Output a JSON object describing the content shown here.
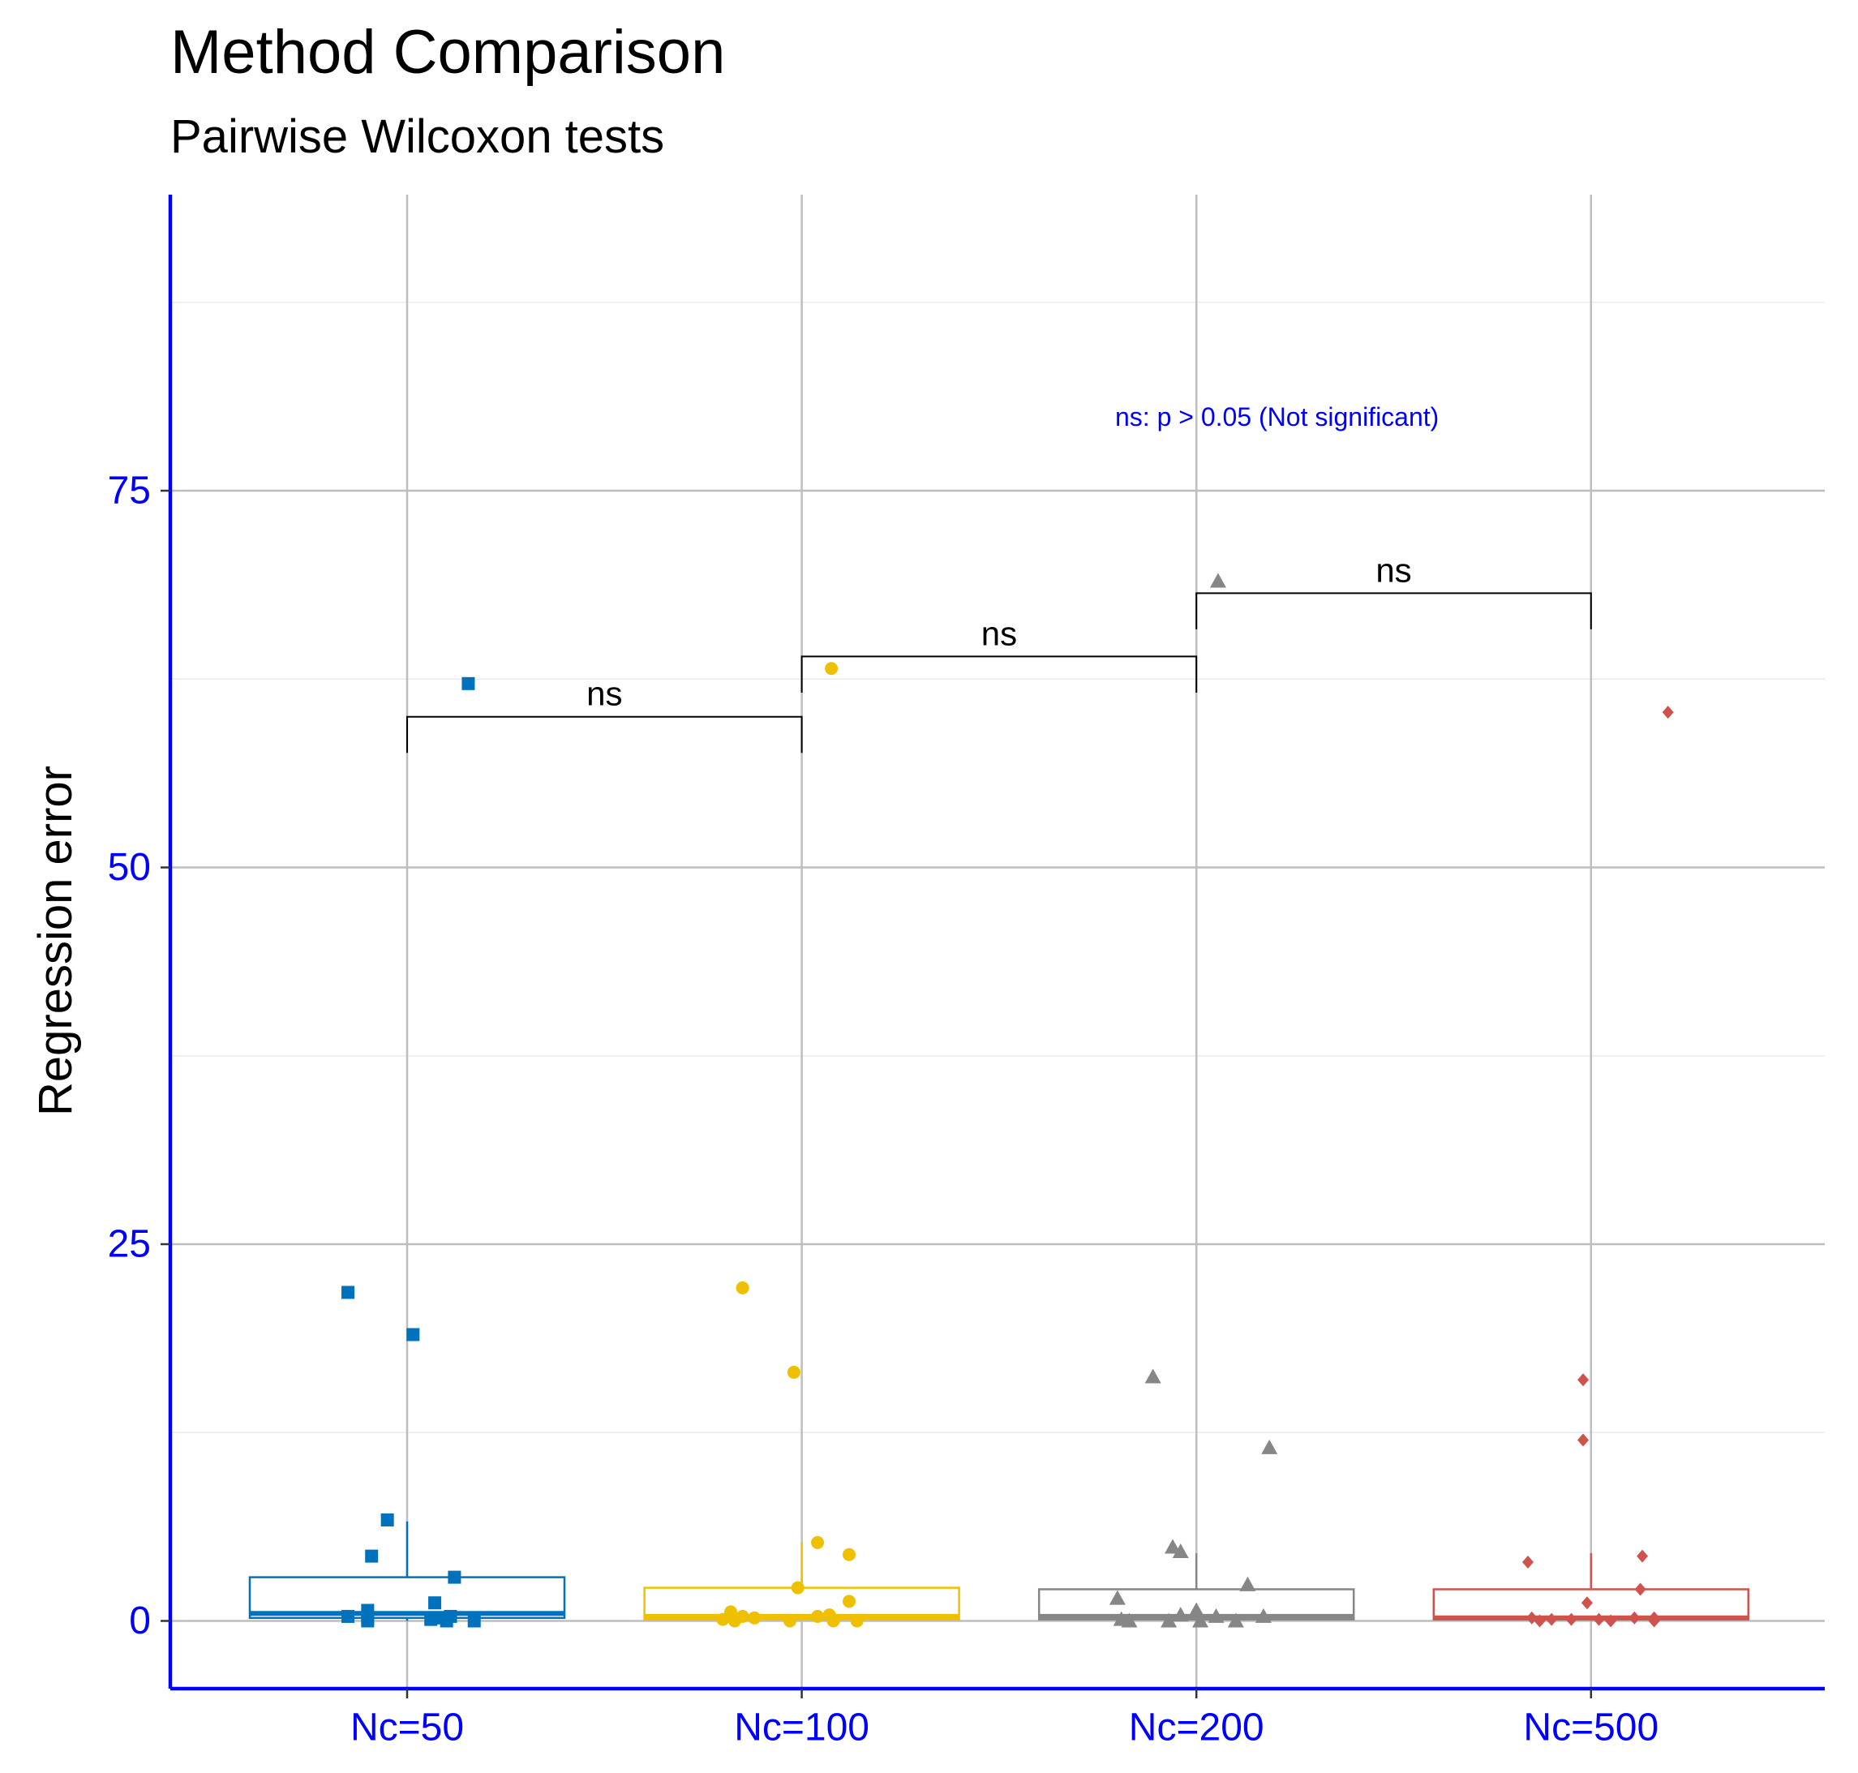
{
  "chart_data": {
    "type": "box",
    "title": "Method Comparison",
    "subtitle": "Pairwise Wilcoxon tests",
    "xlabel": "",
    "ylabel": "Regression error",
    "ylim": [
      -4.5,
      94
    ],
    "yticks": [
      0,
      25,
      50,
      75
    ],
    "ytick_labels": [
      "0",
      "25",
      "50",
      "75"
    ],
    "minor_gridlines": [
      12.5,
      37.5,
      62.5,
      87.5
    ],
    "grid": true,
    "legend": "none",
    "categories": [
      "Nc=50",
      "Nc=100",
      "Nc=200",
      "Nc=500"
    ],
    "series": [
      {
        "name": "Nc=50",
        "color": "#0072bd",
        "marker": "square",
        "box": {
          "q1": 0.2,
          "median": 0.5,
          "q3": 2.9,
          "whisker_low": 0,
          "whisker_high": 6.6
        },
        "points": [
          {
            "x": -0.15,
            "y": 21.8
          },
          {
            "x": 0.015,
            "y": 19.0
          },
          {
            "x": 0.155,
            "y": 62.2
          },
          {
            "x": -0.05,
            "y": 6.7
          },
          {
            "x": -0.09,
            "y": 4.3
          },
          {
            "x": 0.12,
            "y": 2.9
          },
          {
            "x": 0.07,
            "y": 1.2
          },
          {
            "x": -0.1,
            "y": 0.7
          },
          {
            "x": -0.15,
            "y": 0.3
          },
          {
            "x": -0.1,
            "y": 0.2
          },
          {
            "x": 0.08,
            "y": 0.2
          },
          {
            "x": 0.11,
            "y": 0.3
          },
          {
            "x": 0.06,
            "y": 0.1
          },
          {
            "x": -0.1,
            "y": 0.0
          },
          {
            "x": 0.17,
            "y": 0.0
          },
          {
            "x": 0.1,
            "y": 0.0
          }
        ]
      },
      {
        "name": "Nc=100",
        "color": "#efc000",
        "marker": "circle",
        "box": {
          "q1": 0.1,
          "median": 0.3,
          "q3": 2.2,
          "whisker_low": 0,
          "whisker_high": 5.2
        },
        "points": [
          {
            "x": -0.15,
            "y": 22.1
          },
          {
            "x": -0.02,
            "y": 16.5
          },
          {
            "x": 0.075,
            "y": 63.2
          },
          {
            "x": 0.04,
            "y": 5.2
          },
          {
            "x": 0.12,
            "y": 4.4
          },
          {
            "x": -0.01,
            "y": 2.2
          },
          {
            "x": 0.12,
            "y": 1.3
          },
          {
            "x": -0.18,
            "y": 0.6
          },
          {
            "x": -0.15,
            "y": 0.3
          },
          {
            "x": 0.04,
            "y": 0.3
          },
          {
            "x": 0.07,
            "y": 0.4
          },
          {
            "x": -0.12,
            "y": 0.2
          },
          {
            "x": -0.2,
            "y": 0.1
          },
          {
            "x": -0.17,
            "y": 0.0
          },
          {
            "x": -0.03,
            "y": 0.0
          },
          {
            "x": 0.08,
            "y": 0.0
          },
          {
            "x": 0.14,
            "y": 0.0
          }
        ]
      },
      {
        "name": "Nc=200",
        "color": "#868686",
        "marker": "triangle",
        "box": {
          "q1": 0.1,
          "median": 0.3,
          "q3": 2.1,
          "whisker_low": 0,
          "whisker_high": 4.5
        },
        "points": [
          {
            "x": -0.11,
            "y": 16.2
          },
          {
            "x": 0.185,
            "y": 11.5
          },
          {
            "x": 0.055,
            "y": 69.0
          },
          {
            "x": -0.06,
            "y": 4.9
          },
          {
            "x": -0.04,
            "y": 4.6
          },
          {
            "x": 0.13,
            "y": 2.4
          },
          {
            "x": -0.2,
            "y": 1.5
          },
          {
            "x": 0.0,
            "y": 0.7
          },
          {
            "x": -0.04,
            "y": 0.4
          },
          {
            "x": 0.05,
            "y": 0.3
          },
          {
            "x": 0.17,
            "y": 0.3
          },
          {
            "x": -0.19,
            "y": 0.1
          },
          {
            "x": -0.17,
            "y": 0.0
          },
          {
            "x": -0.07,
            "y": 0.0
          },
          {
            "x": 0.01,
            "y": 0.0
          },
          {
            "x": 0.1,
            "y": 0.0
          }
        ]
      },
      {
        "name": "Nc=500",
        "color": "#cd534c",
        "marker": "diamond",
        "box": {
          "q1": 0.1,
          "median": 0.2,
          "q3": 2.1,
          "whisker_low": 0,
          "whisker_high": 4.5
        },
        "points": [
          {
            "x": -0.16,
            "y": 3.9
          },
          {
            "x": 0.13,
            "y": 4.3
          },
          {
            "x": -0.02,
            "y": 12.0
          },
          {
            "x": -0.02,
            "y": 16.0
          },
          {
            "x": 0.195,
            "y": 60.3
          },
          {
            "x": 0.125,
            "y": 2.1
          },
          {
            "x": -0.01,
            "y": 1.2
          },
          {
            "x": -0.15,
            "y": 0.2
          },
          {
            "x": -0.1,
            "y": 0.1
          },
          {
            "x": -0.05,
            "y": 0.1
          },
          {
            "x": 0.02,
            "y": 0.1
          },
          {
            "x": 0.11,
            "y": 0.2
          },
          {
            "x": 0.16,
            "y": 0.2
          },
          {
            "x": -0.13,
            "y": 0.0
          },
          {
            "x": 0.05,
            "y": 0.0
          },
          {
            "x": 0.16,
            "y": 0.0
          }
        ]
      }
    ],
    "comparisons": [
      {
        "from": "Nc=50",
        "to": "Nc=100",
        "y": 60.0,
        "tip_from": 57.6,
        "tip_to": 57.6,
        "label": "ns"
      },
      {
        "from": "Nc=100",
        "to": "Nc=200",
        "y": 64.0,
        "tip_from": 61.6,
        "tip_to": 61.6,
        "label": "ns"
      },
      {
        "from": "Nc=200",
        "to": "Nc=500",
        "y": 68.2,
        "tip_from": 65.8,
        "tip_to": 65.8,
        "label": "ns"
      }
    ],
    "annotation": {
      "text": "ns: p > 0.05 (Not significant)",
      "color": "#0000ff"
    },
    "axis_color": "#0000ff"
  }
}
